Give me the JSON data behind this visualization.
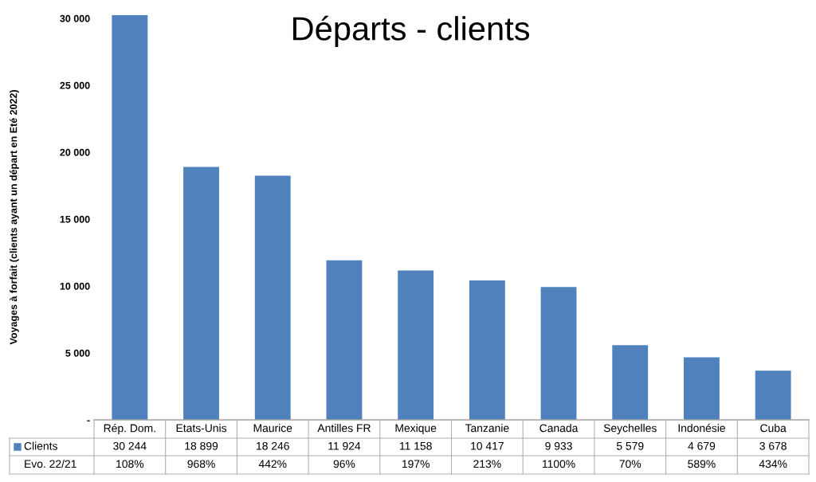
{
  "chart_data": {
    "type": "bar",
    "title": "Départs - clients",
    "ylabel": "Voyages à forfait (clients ayant un départ en Eté 2022)",
    "categories": [
      "Rép. Dom.",
      "Etats-Unis",
      "Maurice",
      "Antilles FR",
      "Mexique",
      "Tanzanie",
      "Canada",
      "Seychelles",
      "Indonésie",
      "Cuba"
    ],
    "series": [
      {
        "name": "Clients",
        "color": "#4f81bd",
        "values": [
          30244,
          18899,
          18246,
          11924,
          11158,
          10417,
          9933,
          5579,
          4679,
          3678
        ],
        "value_labels": [
          "30 244",
          "18 899",
          "18 246",
          "11 924",
          "11 158",
          "10 417",
          "9 933",
          "5 579",
          "4 679",
          "3 678"
        ]
      }
    ],
    "ylim": [
      0,
      30300
    ],
    "yticks": [
      {
        "value": 0,
        "label": "-"
      },
      {
        "value": 5000,
        "label": "5 000"
      },
      {
        "value": 10000,
        "label": "10 000"
      },
      {
        "value": 15000,
        "label": "15 000"
      },
      {
        "value": 20000,
        "label": "20 000"
      },
      {
        "value": 25000,
        "label": "25 000"
      },
      {
        "value": 30000,
        "label": "30 000"
      }
    ],
    "grid": false,
    "legend": "bottom",
    "annotations": [
      "Evo. 22/21",
      "108%",
      "968%",
      "442%",
      "96%",
      "197%",
      "213%",
      "1100%",
      "70%",
      "589%",
      "434%"
    ]
  }
}
